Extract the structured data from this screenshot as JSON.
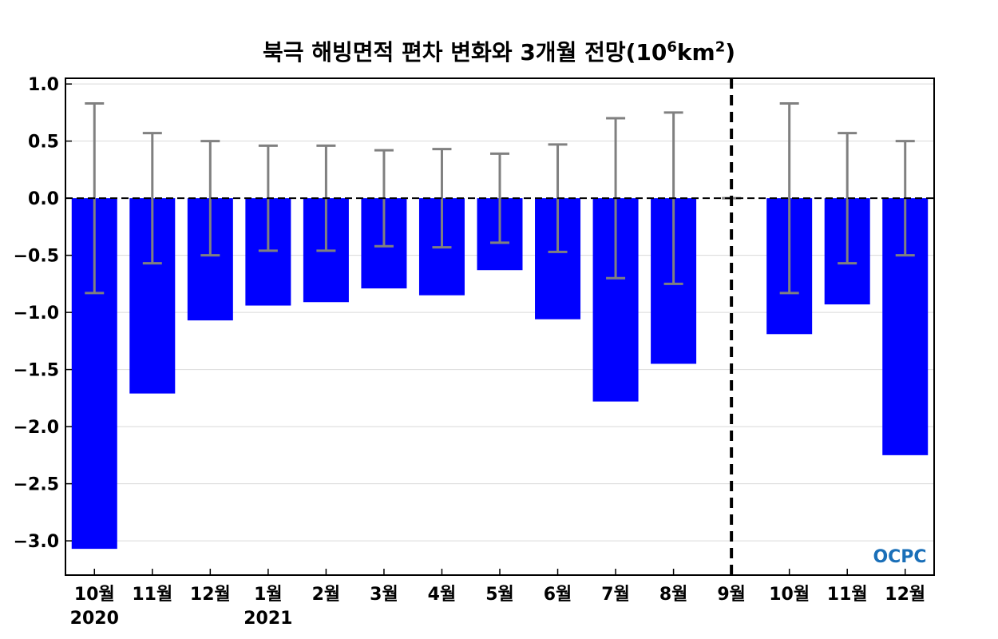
{
  "chart_data": {
    "type": "bar",
    "title_main": "북극 해빙면적 편차 변화와 3개월 전망(10",
    "title_sup1": "6",
    "title_mid": "km",
    "title_sup2": "2",
    "title_end": ")",
    "categories": [
      "10월",
      "11월",
      "12월",
      "1월",
      "2월",
      "3월",
      "4월",
      "5월",
      "6월",
      "7월",
      "8월",
      "9월",
      "10월",
      "11월",
      "12월"
    ],
    "year_labels": [
      {
        "index": 0,
        "label": "2020"
      },
      {
        "index": 3,
        "label": "2021"
      }
    ],
    "values": [
      -3.07,
      -1.71,
      -1.07,
      -0.94,
      -0.91,
      -0.79,
      -0.85,
      -0.63,
      -1.06,
      -1.78,
      -1.45,
      0.0,
      -1.19,
      -0.93,
      -2.25
    ],
    "error": [
      0.83,
      0.57,
      0.5,
      0.46,
      0.46,
      0.42,
      0.43,
      0.39,
      0.47,
      0.7,
      0.75,
      0.0,
      0.83,
      0.57,
      0.5
    ],
    "ylim": [
      -3.3,
      1.05
    ],
    "yticks": [
      1.0,
      0.5,
      0.0,
      -0.5,
      -1.0,
      -1.5,
      -2.0,
      -2.5,
      -3.0
    ],
    "ytick_labels": [
      "1.0",
      "0.5",
      "0.0",
      "−0.5",
      "−1.0",
      "−1.5",
      "−2.0",
      "−2.5",
      "−3.0"
    ],
    "forecast_divider_index": 11,
    "grid": true,
    "colors": {
      "bar": "#0000ff",
      "error_bar": "#808080",
      "grid": "#d9d9d9",
      "divider": "#000000"
    }
  },
  "logo": {
    "text": "OCPC",
    "color": "#1a6fb8"
  }
}
